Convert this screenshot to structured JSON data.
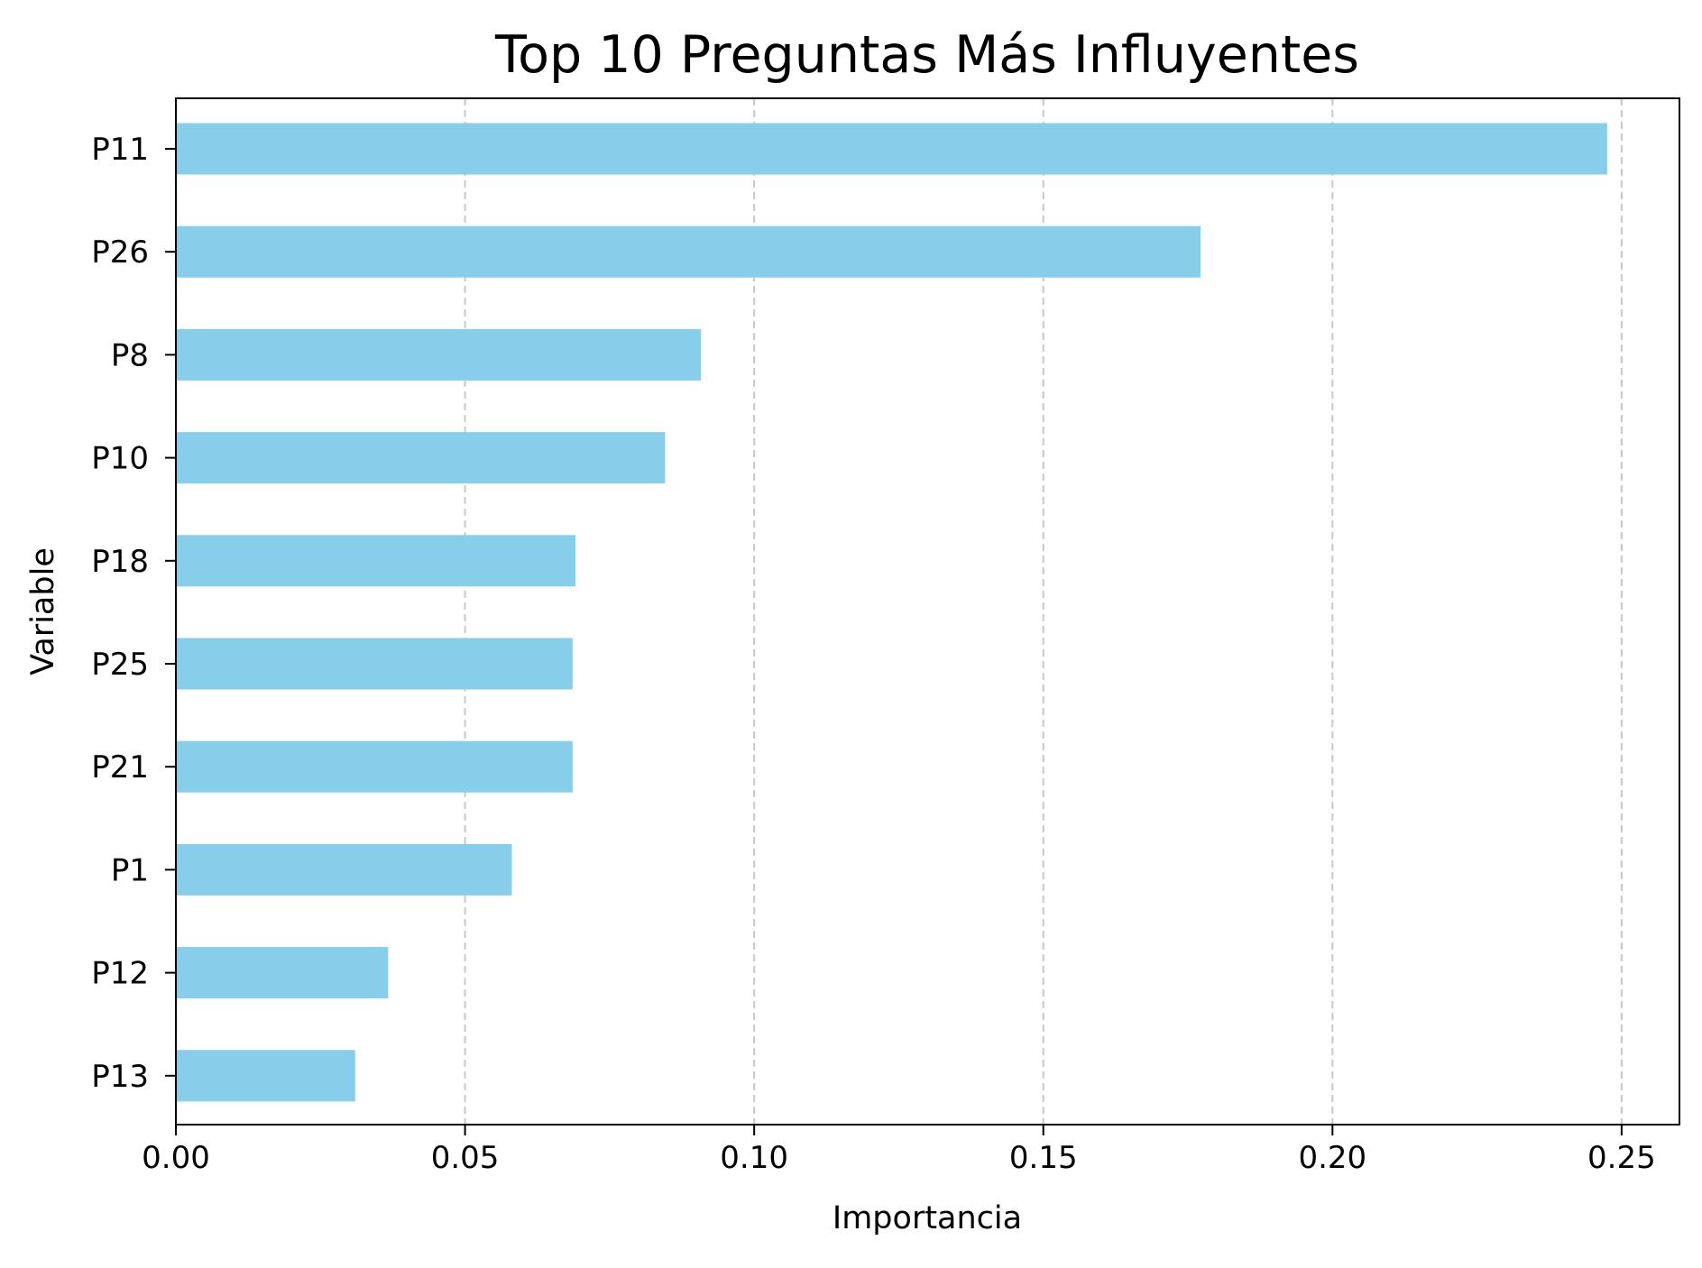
{
  "chart_data": {
    "type": "bar",
    "orientation": "horizontal",
    "title": "Top 10 Preguntas Más Influyentes",
    "xlabel": "Importancia",
    "ylabel": "Variable",
    "categories": [
      "P11",
      "P26",
      "P8",
      "P10",
      "P18",
      "P25",
      "P21",
      "P1",
      "P12",
      "P13"
    ],
    "values": [
      0.2475,
      0.1772,
      0.0908,
      0.0846,
      0.0691,
      0.0686,
      0.0686,
      0.0581,
      0.0367,
      0.031
    ],
    "xlim": [
      0.0,
      0.26
    ],
    "xticks": [
      "0.00",
      "0.05",
      "0.10",
      "0.15",
      "0.20",
      "0.25"
    ],
    "grid": "x, dashed",
    "bar_color": "#87ceeb",
    "grid_color": "#c8c8c8",
    "axis_color": "#000000"
  }
}
